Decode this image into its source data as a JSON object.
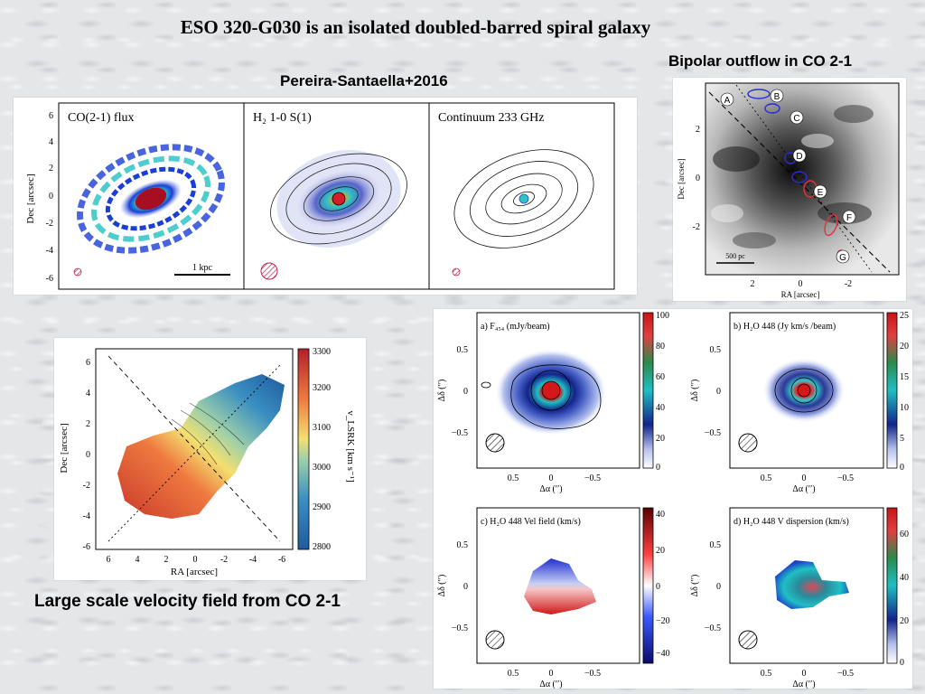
{
  "slide": {
    "title": "ESO 320-G030 is an isolated doubled-barred spiral galaxy",
    "subtitle_left": "Pereira-Santaella+2016",
    "subtitle_right": "Bipolar outflow in CO 2-1",
    "caption_velocity": "Large scale velocity field from CO 2-1"
  },
  "fig_three": {
    "ylabel": "Dec [arcsec]",
    "yticks": [
      "6",
      "4",
      "2",
      "0",
      "-2",
      "-4",
      "-6"
    ],
    "panels": [
      {
        "label": "CO(2-1) flux",
        "scalebar": "1 kpc"
      },
      {
        "label": "H₂ 1-0 S(1)"
      },
      {
        "label": "Continuum 233 GHz"
      }
    ]
  },
  "fig_outflow": {
    "ylabel": "Dec [arcsec]",
    "xlabel": "RA [arcsec]",
    "yticks": [
      "2",
      "0",
      "-2"
    ],
    "xticks": [
      "2",
      "0",
      "-2"
    ],
    "scalebar": "500 pc",
    "knots": [
      "A",
      "B",
      "C",
      "D",
      "E",
      "F",
      "G"
    ]
  },
  "fig_velocity": {
    "ylabel": "Dec [arcsec]",
    "xlabel": "RA [arcsec]",
    "yticks": [
      "6",
      "4",
      "2",
      "0",
      "-2",
      "-4",
      "-6"
    ],
    "xticks": [
      "6",
      "4",
      "2",
      "0",
      "-2",
      "-4",
      "-6"
    ],
    "cbar_ticks": [
      "3300",
      "3200",
      "3100",
      "3000",
      "2900",
      "2800"
    ],
    "cbar_label": "v_LSRK [km s⁻¹]"
  },
  "fig_water": {
    "yticks": [
      "0.5",
      "0",
      "−0.5"
    ],
    "xticks": [
      "0.5",
      "0",
      "−0.5"
    ],
    "ylabel": "Δδ (′′)",
    "xlabel": "Δα (′′)",
    "panels": [
      {
        "label": "a) F₄₅₄ (mJy/beam)",
        "cbar_ticks": [
          "100",
          "80",
          "60",
          "40",
          "20",
          "0"
        ]
      },
      {
        "label": "b) H₂O 448 (Jy km/s /beam)",
        "cbar_ticks": [
          "25",
          "20",
          "15",
          "10",
          "5",
          "0"
        ]
      },
      {
        "label": "c) H₂O 448 Vel field (km/s)",
        "cbar_ticks": [
          "40",
          "20",
          "0",
          "−20",
          "−40"
        ]
      },
      {
        "label": "d) H₂O 448 V dispersion (km/s)",
        "cbar_ticks": [
          "60",
          "40",
          "20",
          "0"
        ]
      }
    ]
  },
  "colors": {
    "background": "#e4e6e8",
    "rainbow_low": "#1b3fd6",
    "rainbow_mid": "#2ec4c4",
    "rainbow_high": "#d61c2a",
    "vel_red": "#d63b2a",
    "vel_blue": "#2a6bd6"
  }
}
